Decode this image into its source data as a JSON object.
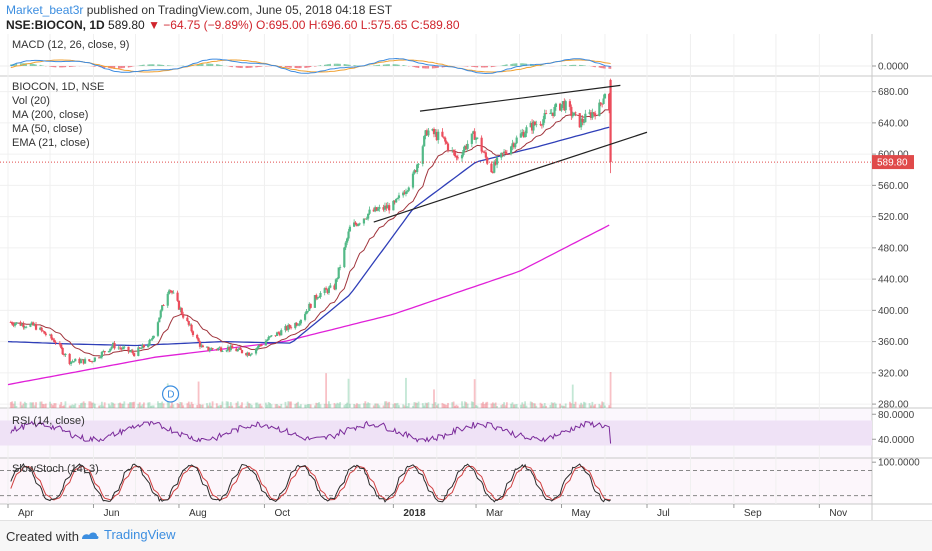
{
  "header": {
    "author": "Market_beat3r",
    "published_text": "published on TradingView.com, June 05, 2018 04:18 EST",
    "symbol": "NSE:BIOCON, 1D",
    "last": "589.80",
    "change": "▼ −64.75 (−9.89%)",
    "ohlc": "O:695.00 H:696.60 L:575.65 C:589.80"
  },
  "footer": {
    "created_with": "Created with",
    "brand": "TradingView"
  },
  "colors": {
    "up": "#53b987",
    "down": "#eb4d5c",
    "ma200": "#e020d8",
    "ma50": "#2f3fb8",
    "ema21": "#a0343c",
    "macd": "#3d8be0",
    "signal": "#f0a030",
    "rsi": "#7a2a9a",
    "stoch_k": "#2a2a2a",
    "stoch_d": "#d04040",
    "price_tag": "#e04a4a"
  },
  "chart_data": {
    "type": "candlestick",
    "main_legend": [
      "BIOCON, 1D, NSE",
      "Vol (20)",
      "MA (200, close)",
      "MA (50, close)",
      "EMA (21, close)"
    ],
    "price_axis": {
      "range": [
        275,
        700
      ],
      "ticks": [
        "680.00",
        "640.00",
        "600.00",
        "560.00",
        "520.00",
        "480.00",
        "440.00",
        "400.00",
        "360.00",
        "320.00",
        "280.00"
      ],
      "last_price_label": "589.80"
    },
    "x_axis": {
      "labels": [
        "Apr",
        "Jun",
        "Aug",
        "Oct",
        "2018",
        "Mar",
        "May",
        "Jul",
        "Sep",
        "Nov"
      ],
      "date_range": [
        "2017-04-01",
        "2018-11-30"
      ]
    },
    "price_keypoints": [
      [
        "2017-04-01",
        385
      ],
      [
        "2017-04-20",
        380
      ],
      [
        "2017-05-05",
        360
      ],
      [
        "2017-05-15",
        335
      ],
      [
        "2017-05-30",
        335
      ],
      [
        "2017-06-15",
        355
      ],
      [
        "2017-06-30",
        345
      ],
      [
        "2017-07-12",
        360
      ],
      [
        "2017-07-25",
        430
      ],
      [
        "2017-08-05",
        390
      ],
      [
        "2017-08-18",
        350
      ],
      [
        "2017-09-05",
        352
      ],
      [
        "2017-09-20",
        345
      ],
      [
        "2017-10-05",
        365
      ],
      [
        "2017-10-25",
        385
      ],
      [
        "2017-11-08",
        420
      ],
      [
        "2017-11-20",
        430
      ],
      [
        "2017-12-01",
        505
      ],
      [
        "2017-12-15",
        525
      ],
      [
        "2018-01-02",
        535
      ],
      [
        "2018-01-15",
        570
      ],
      [
        "2018-01-25",
        630
      ],
      [
        "2018-02-05",
        620
      ],
      [
        "2018-02-15",
        595
      ],
      [
        "2018-02-28",
        625
      ],
      [
        "2018-03-12",
        580
      ],
      [
        "2018-03-25",
        610
      ],
      [
        "2018-04-05",
        630
      ],
      [
        "2018-04-18",
        645
      ],
      [
        "2018-05-02",
        665
      ],
      [
        "2018-05-14",
        640
      ],
      [
        "2018-05-28",
        660
      ],
      [
        "2018-06-01",
        680
      ],
      [
        "2018-06-04",
        654
      ]
    ],
    "last_candle": {
      "date": "2018-06-05",
      "open": 695.0,
      "high": 696.6,
      "low": 575.65,
      "close": 589.8
    },
    "ma200_keypoints": [
      [
        "2017-04-01",
        305
      ],
      [
        "2017-07-15",
        340
      ],
      [
        "2017-10-15",
        360
      ],
      [
        "2018-01-01",
        395
      ],
      [
        "2018-04-01",
        450
      ],
      [
        "2018-06-05",
        510
      ]
    ],
    "ma50_keypoints": [
      [
        "2017-04-01",
        360
      ],
      [
        "2017-05-15",
        357
      ],
      [
        "2017-07-01",
        355
      ],
      [
        "2017-09-01",
        360
      ],
      [
        "2017-10-20",
        358
      ],
      [
        "2017-12-01",
        420
      ],
      [
        "2018-01-15",
        530
      ],
      [
        "2018-03-01",
        590
      ],
      [
        "2018-04-15",
        610
      ],
      [
        "2018-06-05",
        635
      ]
    ],
    "trendlines": [
      {
        "from": [
          "2018-01-20",
          655
        ],
        "to": [
          "2018-06-12",
          688
        ]
      },
      {
        "from": [
          "2017-12-18",
          513
        ],
        "to": [
          "2018-07-01",
          628
        ]
      }
    ],
    "macd": {
      "legend": "MACD (12, 26, close, 9)",
      "axis_label": "0.0000"
    },
    "rsi": {
      "legend": "RSI (14, close)",
      "axis_labels": [
        "80.0000",
        "40.0000"
      ],
      "range": [
        10,
        90
      ],
      "band": [
        30,
        70
      ]
    },
    "stoch": {
      "legend": "SlowStoch (14, 3)",
      "axis_label": "100.0000",
      "range": [
        0,
        110
      ],
      "band": [
        20,
        80
      ]
    },
    "earnings_marker": {
      "date": "2017-07-26",
      "label": "D"
    }
  }
}
